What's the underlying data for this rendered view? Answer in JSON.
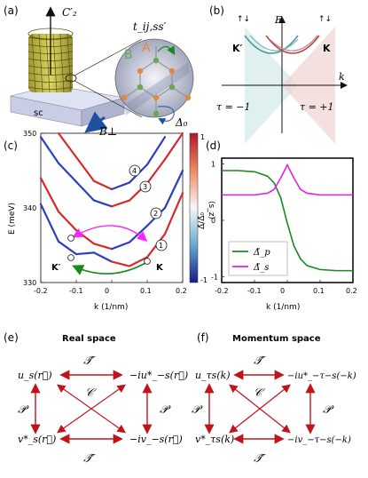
{
  "panel_labels": [
    "(a)",
    "(b)",
    "(c)",
    "(d)",
    "(e)",
    "(f)"
  ],
  "panel_a": {
    "axis_label": "C′₂",
    "substrate_label": "sc",
    "field_label": "B⊥",
    "hopping_label": "t_ij,ss′",
    "sublattice_b": "B",
    "sublattice_a": "A",
    "pairing_label": "Δ₀",
    "colors": {
      "tube": "#b8b020",
      "substrate": "#c9cde6",
      "arrow": "#1f4fa0",
      "b_site": "#6aa84f",
      "a_site": "#e08a3a"
    }
  },
  "panel_b": {
    "energy_label": "E",
    "momentum_label": "k",
    "valley_left": "K′",
    "valley_right": "K",
    "spin_left": "↑↓",
    "spin_right": "↑↓",
    "tau_left": "τ = −1",
    "tau_right": "τ = +1"
  },
  "chart_c": {
    "type": "line",
    "ylabel": "E (meV)",
    "xlabel": "k (1/nm)",
    "xlim": [
      -0.2,
      0.2
    ],
    "ylim": [
      330,
      350
    ],
    "x_ticks": [
      "-0.2",
      "-0.1",
      "0",
      "0.1",
      "0.2"
    ],
    "y_ticks": [
      "330",
      "340",
      "350"
    ],
    "colorbar_label": "⟨s_z⟩",
    "colorbar_ticks": [
      "1",
      "-1"
    ],
    "band_labels": [
      "1",
      "2",
      "3",
      "4"
    ],
    "valley_left": "K′",
    "valley_right": "K",
    "series": [
      {
        "x": [
          -0.2,
          -0.15,
          -0.1,
          -0.05,
          0,
          0.05,
          0.1,
          0.15,
          0.2
        ],
        "y": [
          340.5,
          335.5,
          333.8,
          334.0,
          332.8,
          332.2,
          333.4,
          336.5,
          342.0
        ]
      },
      {
        "x": [
          -0.2,
          -0.15,
          -0.1,
          -0.05,
          0,
          0.05,
          0.1,
          0.15,
          0.2
        ],
        "y": [
          344.0,
          339.5,
          337.0,
          335.2,
          334.5,
          335.4,
          337.6,
          340.0,
          345.0
        ]
      },
      {
        "x": [
          -0.2,
          -0.15,
          -0.1,
          -0.05,
          0,
          0.05,
          0.1,
          0.15,
          0.2
        ],
        "y": [
          349.5,
          346.0,
          343.5,
          341.0,
          340.2,
          341.0,
          343.3,
          346.5,
          350.0
        ]
      },
      {
        "x": [
          -0.15,
          -0.1,
          -0.05,
          0,
          0.05,
          0.1,
          0.15
        ],
        "y": [
          350.0,
          346.8,
          343.6,
          342.5,
          343.4,
          345.8,
          349.5
        ]
      }
    ],
    "colors": {
      "blue": "#2b3fc0",
      "red": "#d62a2a",
      "pink_arrow": "#ff22ff",
      "green_arrow": "#1a8a1a"
    }
  },
  "chart_d": {
    "type": "line",
    "ylabel": "Δ̃/Δ̃₀",
    "xlabel": "k (1/nm)",
    "xlim": [
      -0.2,
      0.2
    ],
    "ylim": [
      -1.1,
      1.1
    ],
    "x_ticks": [
      "-0.2",
      "-0.1",
      "0",
      "0.1",
      "0.2"
    ],
    "y_ticks": [
      "1",
      "0",
      "-1"
    ],
    "series": [
      {
        "name": "Δ̃_p",
        "color": "#1a8a1a",
        "x": [
          -0.2,
          -0.15,
          -0.1,
          -0.06,
          -0.04,
          -0.02,
          0,
          0.02,
          0.04,
          0.06,
          0.1,
          0.15,
          0.2
        ],
        "y": [
          0.88,
          0.88,
          0.86,
          0.78,
          0.66,
          0.4,
          -0.05,
          -0.45,
          -0.68,
          -0.8,
          -0.87,
          -0.89,
          -0.89
        ]
      },
      {
        "name": "Δ̃_s",
        "color": "#e020e0",
        "x": [
          -0.2,
          -0.15,
          -0.1,
          -0.06,
          -0.04,
          -0.02,
          0,
          0.02,
          0.04,
          0.06,
          0.1,
          0.15,
          0.2
        ],
        "y": [
          0.45,
          0.45,
          0.45,
          0.48,
          0.55,
          0.75,
          0.98,
          0.75,
          0.55,
          0.48,
          0.45,
          0.45,
          0.45
        ]
      }
    ]
  },
  "panel_e": {
    "title": "Real space",
    "top_left": "u_s(r⃗)",
    "top_right": "−iu*_−s(r⃗)",
    "bottom_left": "v*_s(r⃗)",
    "bottom_right": "−iv_−s(r⃗)",
    "top_op": "𝒯̃",
    "bottom_op": "𝒯̃",
    "left_op": "𝒫",
    "right_op": "𝒫",
    "center_op": "𝒞"
  },
  "panel_f": {
    "title": "Momentum space",
    "top_left": "u_τs(k)",
    "top_right": "−iu*_−τ−s(−k)",
    "bottom_left": "v*_τs(k)",
    "bottom_right": "−iv_−τ−s(−k)",
    "top_op": "𝒯̃",
    "bottom_op": "𝒯̃",
    "left_op": "𝒫",
    "right_op": "𝒫",
    "center_op": "𝒞"
  }
}
